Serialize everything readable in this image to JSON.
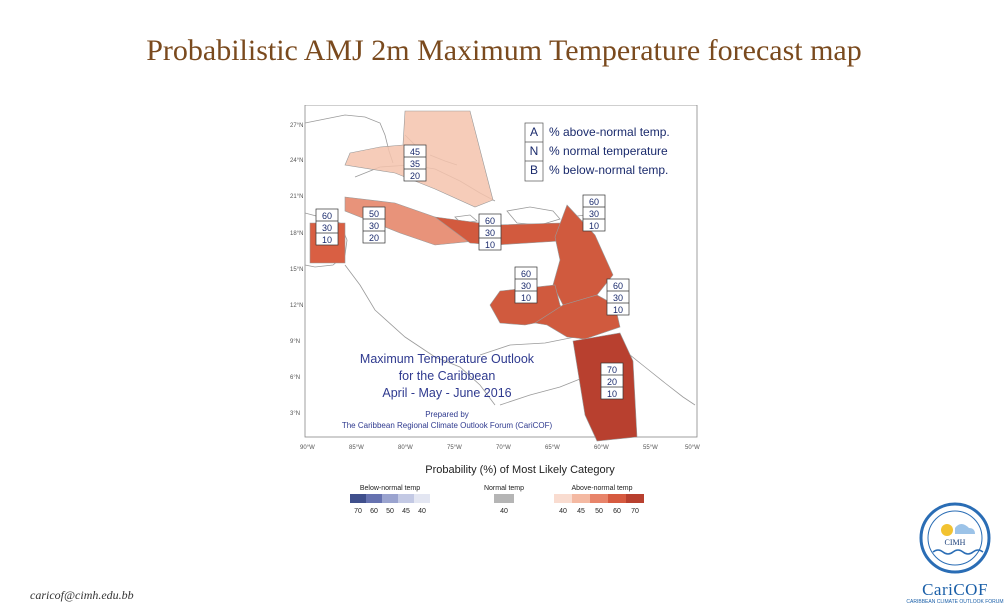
{
  "slide": {
    "title": "Probabilistic AMJ 2m Maximum Temperature forecast map",
    "email": "caricof@cimh.edu.bb"
  },
  "map": {
    "lat_labels": [
      "27°N",
      "24°N",
      "21°N",
      "18°N",
      "15°N",
      "12°N",
      "9°N",
      "6°N",
      "3°N"
    ],
    "lon_labels": [
      "90°W",
      "85°W",
      "80°W",
      "75°W",
      "70°W",
      "65°W",
      "60°W",
      "55°W",
      "50°W"
    ],
    "key": {
      "rows": [
        {
          "letter": "A",
          "text": "% above-normal temp."
        },
        {
          "letter": "N",
          "text": "% normal temperature"
        },
        {
          "letter": "B",
          "text": "% below-normal temp."
        }
      ]
    },
    "outlook_title": [
      "Maximum Temperature Outlook",
      "for the Caribbean",
      "April - May - June 2016"
    ],
    "prepared_by": [
      "Prepared by",
      "The Caribbean Regional Climate Outlook Forum (CariCOF)"
    ],
    "regions": [
      {
        "id": "northern-bahamas-cuba",
        "A": "45",
        "N": "35",
        "B": "20",
        "color": "#f4c3ad"
      },
      {
        "id": "belize-yucatan",
        "A": "60",
        "N": "30",
        "B": "10",
        "color": "#d95f43"
      },
      {
        "id": "central-caribbean",
        "A": "50",
        "N": "30",
        "B": "20",
        "color": "#e8937a"
      },
      {
        "id": "greater-antilles-east",
        "A": "60",
        "N": "30",
        "B": "10",
        "color": "#d25a3e"
      },
      {
        "id": "lesser-antilles",
        "A": "60",
        "N": "30",
        "B": "10",
        "color": "#d05a3e"
      },
      {
        "id": "southern-caribbean",
        "A": "60",
        "N": "30",
        "B": "10",
        "color": "#d05a3e"
      },
      {
        "id": "eastern-windward",
        "A": "60",
        "N": "30",
        "B": "10",
        "color": "#d05a3e"
      },
      {
        "id": "guianas",
        "A": "70",
        "N": "20",
        "B": "10",
        "color": "#b8402f"
      }
    ]
  },
  "legend": {
    "title": "Probability (%) of Most Likely Category",
    "groups": [
      {
        "label": "Below-normal temp",
        "ticks": [
          "70",
          "60",
          "50",
          "45",
          "40"
        ],
        "colors": [
          "#3f4f8c",
          "#6672b0",
          "#9aa3cf",
          "#c3c9e4",
          "#e3e6f2"
        ]
      },
      {
        "label": "Normal temp",
        "ticks": [
          "40"
        ],
        "colors": [
          "#b5b5b5"
        ]
      },
      {
        "label": "Above-normal temp",
        "ticks": [
          "40",
          "45",
          "50",
          "60",
          "70"
        ],
        "colors": [
          "#f9dcd0",
          "#f4b9a2",
          "#e8846a",
          "#d65a40",
          "#b8402f"
        ]
      }
    ]
  },
  "logo": {
    "seal_text": "CIMH",
    "brand": "CariCOF",
    "subtitle": "CARIBBEAN CLIMATE OUTLOOK FORUM"
  }
}
